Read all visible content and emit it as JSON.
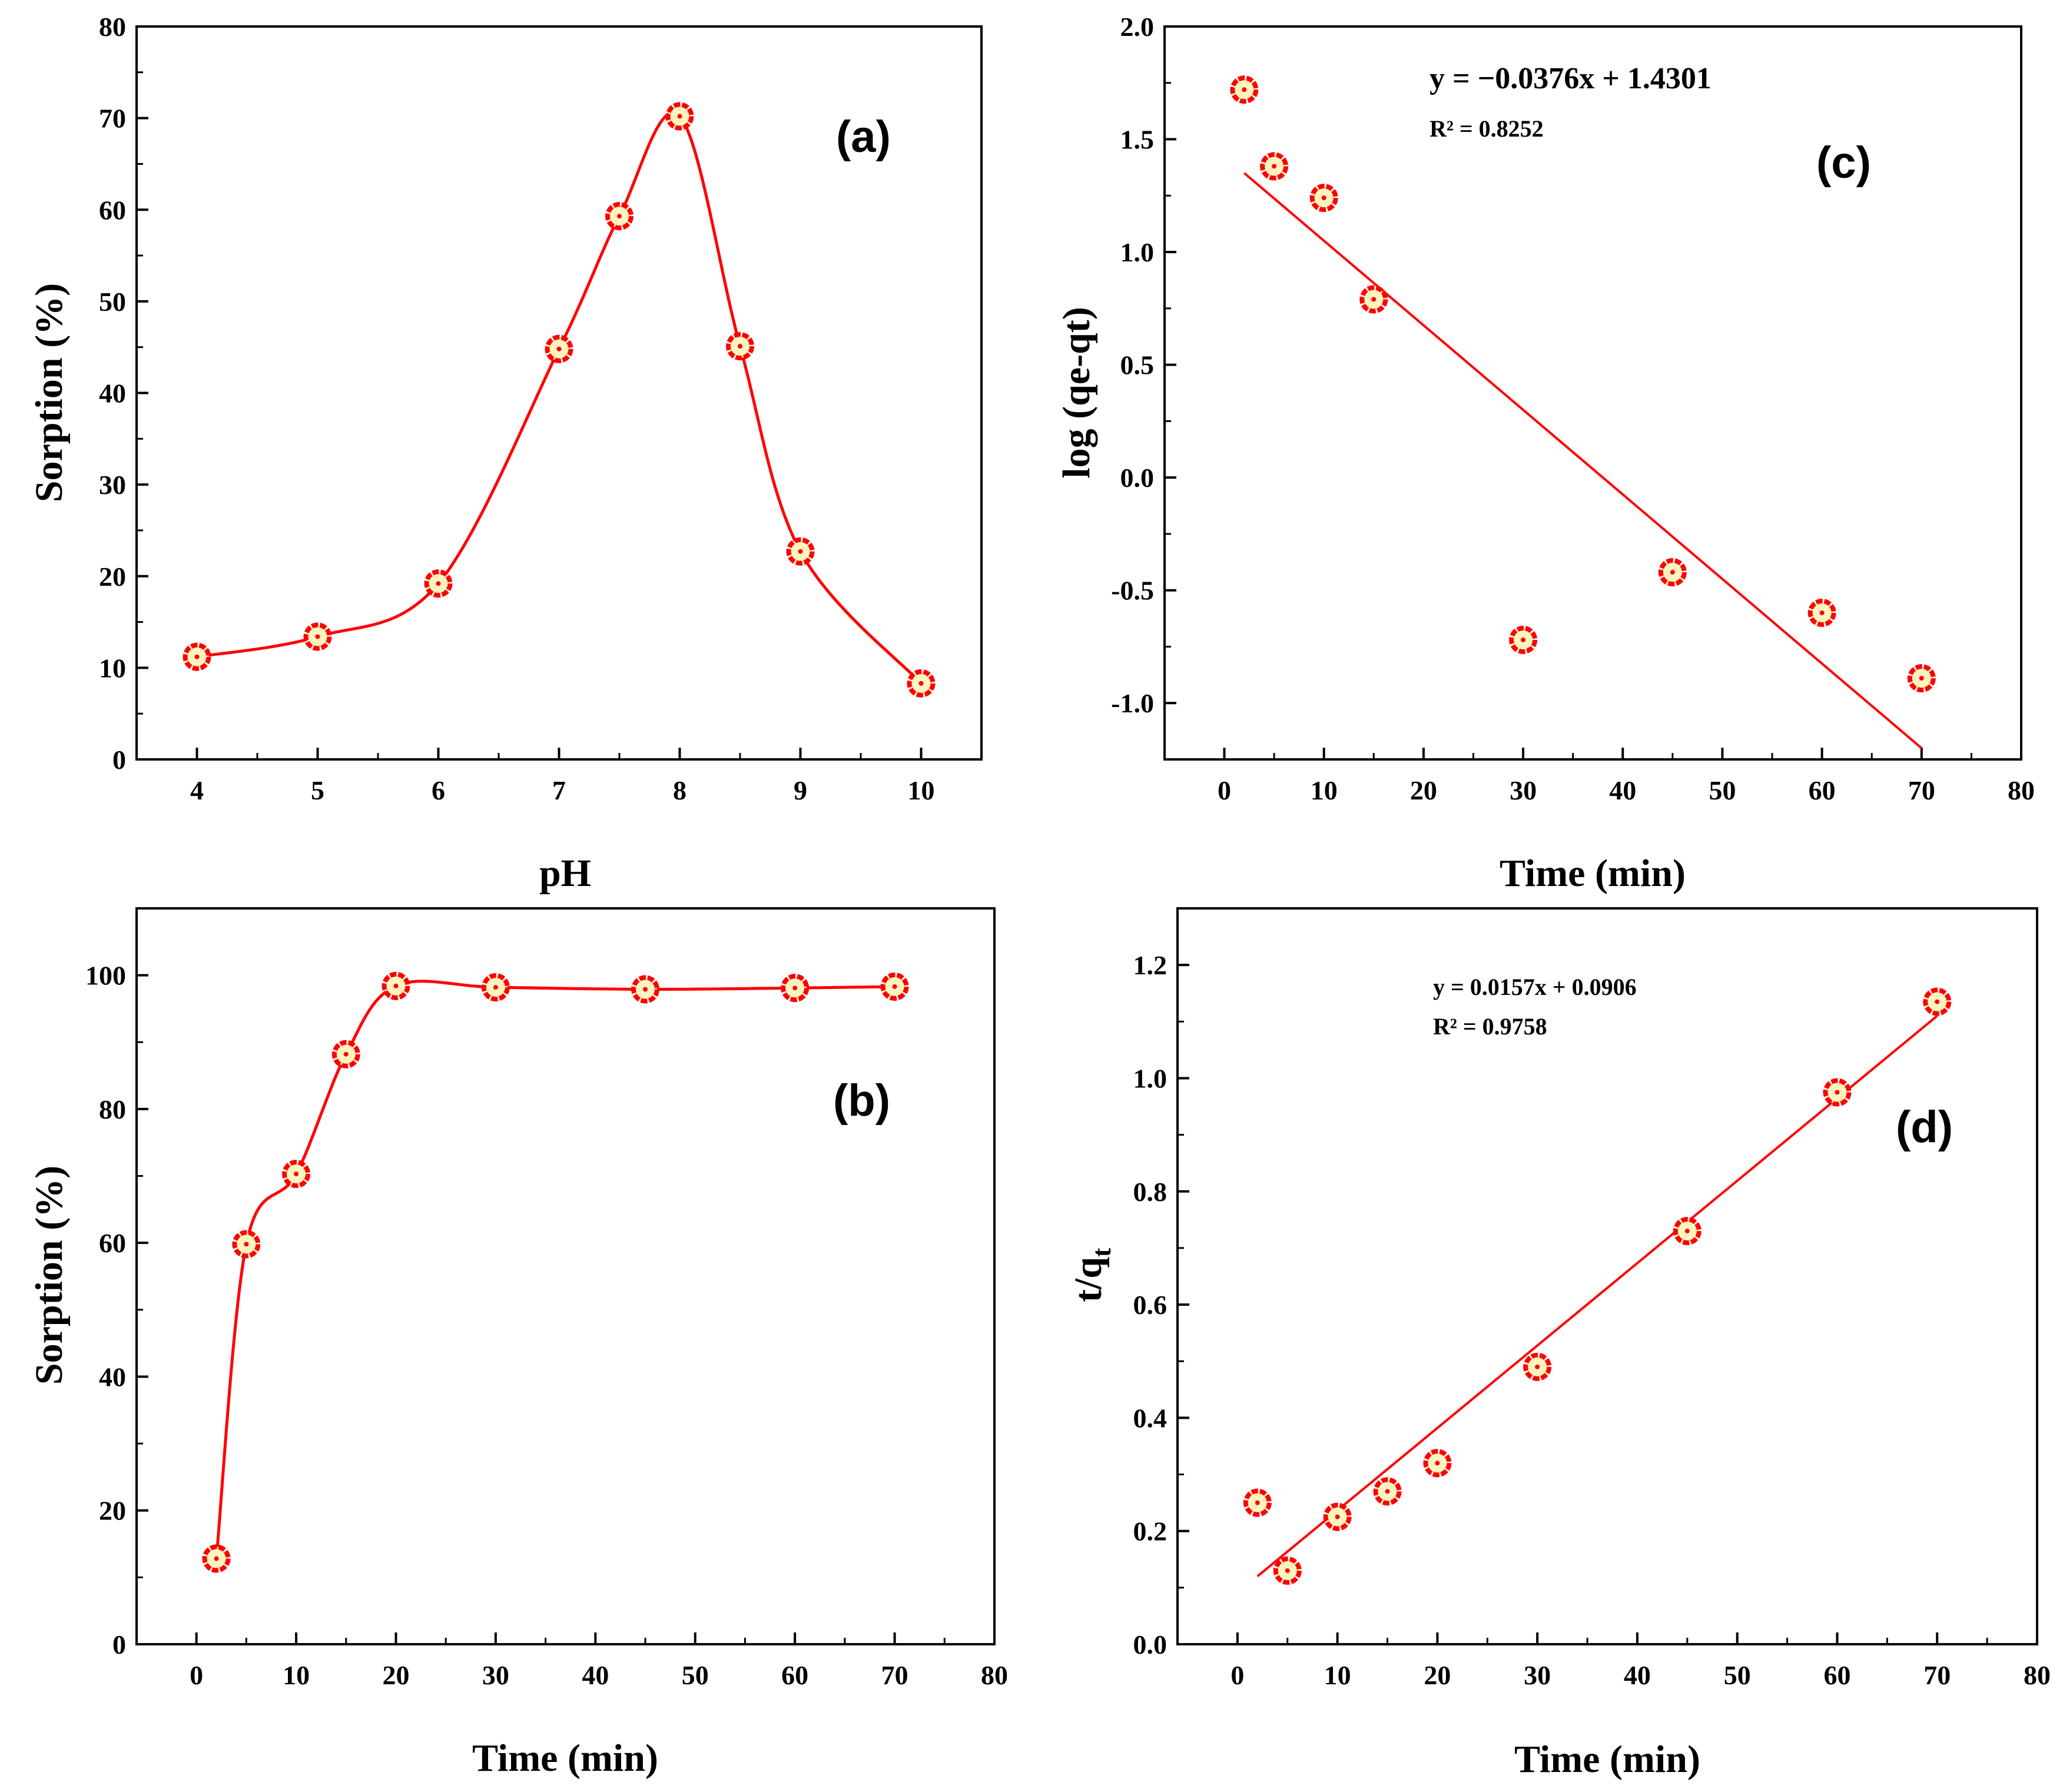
{
  "figure": {
    "background": "#ffffff",
    "accent": "#ff0000",
    "marker_fill": "#fff4c0"
  },
  "chart_data": [
    {
      "id": "a",
      "type": "line",
      "panel_label": "(a)",
      "xlabel": "pH",
      "ylabel": "Sorption (%)",
      "xlim": [
        3.5,
        10.5
      ],
      "ylim": [
        0,
        80
      ],
      "xticks": [
        4,
        5,
        6,
        7,
        8,
        9,
        10
      ],
      "yticks": [
        0,
        10,
        20,
        30,
        40,
        50,
        60,
        70,
        80
      ],
      "series": [
        {
          "name": "Sorption",
          "x": [
            4,
            5,
            6,
            7,
            7.5,
            8,
            8.5,
            9,
            10
          ],
          "y": [
            11.2,
            13.4,
            19.2,
            44.8,
            59.3,
            70.2,
            45.1,
            22.7,
            8.3
          ],
          "smooth": true
        }
      ]
    },
    {
      "id": "b",
      "type": "line",
      "panel_label": "(b)",
      "xlabel": "Time (min)",
      "ylabel": "Sorption (%)",
      "xlim": [
        -6,
        80
      ],
      "ylim": [
        0,
        110
      ],
      "xticks": [
        0,
        10,
        20,
        30,
        40,
        50,
        60,
        70,
        80
      ],
      "yticks": [
        0,
        20,
        40,
        60,
        80,
        100
      ],
      "series": [
        {
          "name": "Sorption",
          "x": [
            2,
            5,
            10,
            15,
            20,
            30,
            45,
            60,
            70
          ],
          "y": [
            12.8,
            59.8,
            70.3,
            88.2,
            98.4,
            98.2,
            97.9,
            98.1,
            98.3
          ],
          "smooth": true
        }
      ]
    },
    {
      "id": "c",
      "type": "scatter",
      "panel_label": "(c)",
      "xlabel": "Time (min)",
      "ylabel": "log (qe-qt)",
      "xlim": [
        -6,
        80
      ],
      "ylim": [
        -1.25,
        2.0
      ],
      "xticks": [
        0,
        10,
        20,
        30,
        40,
        50,
        60,
        70,
        80
      ],
      "yticks": [
        -1.0,
        -0.5,
        0.0,
        0.5,
        1.0,
        1.5,
        2.0
      ],
      "ytick_labels": [
        "-1.0",
        "-0.5",
        "0.0",
        "0.5",
        "1.0",
        "1.5",
        "2.0"
      ],
      "series": [
        {
          "name": "log (qe-qt)",
          "x": [
            2,
            5,
            10,
            15,
            30,
            45,
            60,
            70
          ],
          "y": [
            1.72,
            1.38,
            1.24,
            0.79,
            -0.72,
            -0.42,
            -0.6,
            -0.89
          ]
        }
      ],
      "fit": {
        "x": [
          2,
          70
        ],
        "y": [
          1.35,
          -1.2
        ]
      },
      "equation": "y = −0.0376x + 1.4301",
      "r_squared": "R² = 0.8252"
    },
    {
      "id": "d",
      "type": "scatter",
      "panel_label": "(d)",
      "xlabel": "Time (min)",
      "ylabel_main": "t/q",
      "ylabel_sub": "t",
      "xlim": [
        -6,
        80
      ],
      "ylim": [
        0,
        1.3
      ],
      "xticks": [
        0,
        10,
        20,
        30,
        40,
        50,
        60,
        70,
        80
      ],
      "yticks": [
        0.0,
        0.2,
        0.4,
        0.6,
        0.8,
        1.0,
        1.2
      ],
      "ytick_labels": [
        "0.0",
        "0.2",
        "0.4",
        "0.6",
        "0.8",
        "1.0",
        "1.2"
      ],
      "series": [
        {
          "name": "t/qt",
          "x": [
            2,
            5,
            10,
            15,
            20,
            30,
            45,
            60,
            70
          ],
          "y": [
            0.25,
            0.13,
            0.225,
            0.27,
            0.32,
            0.49,
            0.73,
            0.975,
            1.135
          ]
        }
      ],
      "fit": {
        "x": [
          2,
          70
        ],
        "y": [
          0.12,
          1.11
        ]
      },
      "equation": "y = 0.0157x + 0.0906",
      "r_squared": "R² = 0.9758"
    }
  ]
}
